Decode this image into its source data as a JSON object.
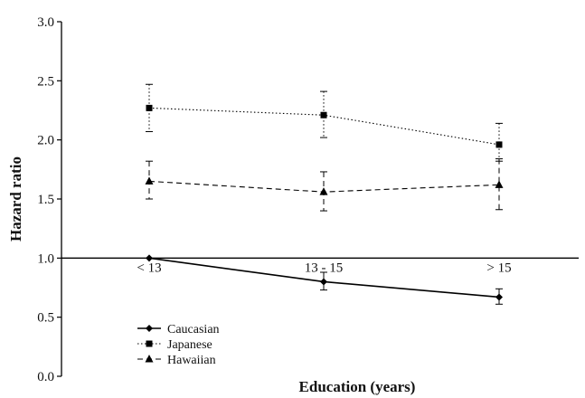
{
  "chart_data": {
    "type": "line",
    "xlabel": "Education (years)",
    "ylabel": "Hazard ratio",
    "categories": [
      "< 13",
      "13 - 15",
      "> 15"
    ],
    "ylim": [
      0.0,
      3.0
    ],
    "yticks": [
      "0.0",
      "0.5",
      "1.0",
      "1.5",
      "2.0",
      "2.5",
      "3.0"
    ],
    "reference_line_y": 1.0,
    "grid": false,
    "legend_position": "bottom-left",
    "series": [
      {
        "name": "Caucasian",
        "marker": "diamond",
        "line_style": "solid",
        "values": [
          1.0,
          0.8,
          0.67
        ],
        "ci_low": [
          1.0,
          0.73,
          0.61
        ],
        "ci_high": [
          1.0,
          0.88,
          0.74
        ]
      },
      {
        "name": "Japanese",
        "marker": "square",
        "line_style": "dotted",
        "values": [
          2.27,
          2.21,
          1.96
        ],
        "ci_low": [
          2.07,
          2.02,
          1.82
        ],
        "ci_high": [
          2.47,
          2.41,
          2.14
        ]
      },
      {
        "name": "Hawaiian",
        "marker": "triangle",
        "line_style": "dashed",
        "values": [
          1.65,
          1.56,
          1.62
        ],
        "ci_low": [
          1.5,
          1.4,
          1.41
        ],
        "ci_high": [
          1.82,
          1.73,
          1.84
        ]
      }
    ]
  }
}
